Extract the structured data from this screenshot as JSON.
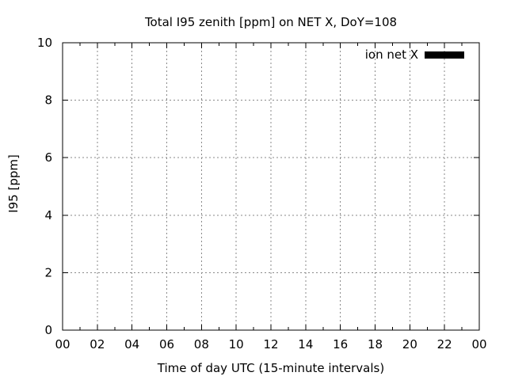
{
  "title": "Total I95 zenith [ppm] on NET X, DoY=108",
  "x_axis_label": "Time of day UTC (15-minute intervals)",
  "y_axis_label": "I95 [ppm]",
  "legend": {
    "label": "ion net X",
    "swatch_color": "#000000",
    "position": "top-right-inside"
  },
  "colors": {
    "foreground": "#000000",
    "background": "#ffffff",
    "grid": "#8a8a8a"
  },
  "chart_data": {
    "type": "line",
    "title": "Total I95 zenith [ppm] on NET X, DoY=108",
    "xlabel": "Time of day UTC (15-minute intervals)",
    "ylabel": "I95 [ppm]",
    "xlim": [
      0,
      24
    ],
    "ylim": [
      0,
      10
    ],
    "x_major_ticks": [
      0,
      2,
      4,
      6,
      8,
      10,
      12,
      14,
      16,
      18,
      20,
      22,
      24
    ],
    "x_tick_labels": [
      "00",
      "02",
      "04",
      "06",
      "08",
      "10",
      "12",
      "14",
      "16",
      "18",
      "20",
      "22",
      "00"
    ],
    "x_minor_step": 1,
    "y_major_ticks": [
      0,
      2,
      4,
      6,
      8,
      10
    ],
    "y_tick_labels": [
      "0",
      "2",
      "4",
      "6",
      "8",
      "10"
    ],
    "grid": true,
    "grid_style": "dotted",
    "legend_position": "top-right-inside",
    "series": [
      {
        "name": "ion net X",
        "color": "#000000",
        "x": [],
        "values": []
      }
    ]
  }
}
